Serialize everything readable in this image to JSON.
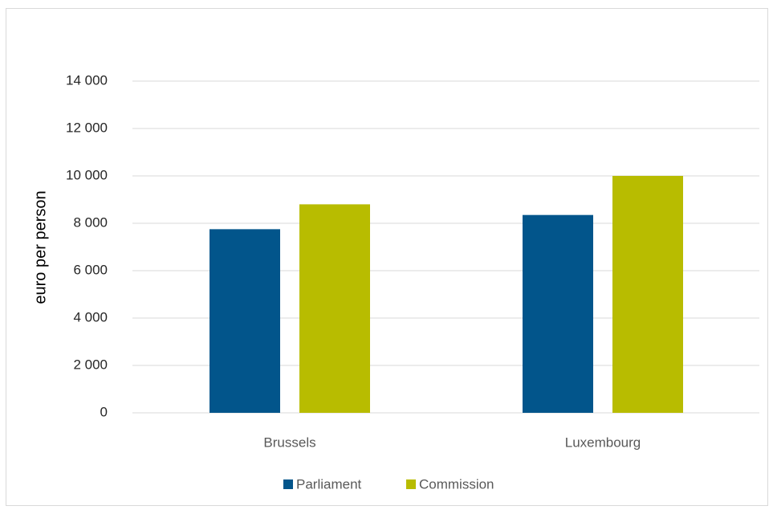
{
  "chart_data": {
    "type": "bar",
    "categories": [
      "Brussels",
      "Luxembourg"
    ],
    "series": [
      {
        "name": "Parliament",
        "values": [
          7750,
          8350
        ],
        "color": "#02558b"
      },
      {
        "name": "Commission",
        "values": [
          8800,
          10000
        ],
        "color": "#b8bc00"
      }
    ],
    "title": "",
    "xlabel": "",
    "ylabel": "euro per person",
    "ylim": [
      0,
      14000
    ],
    "yticks": [
      0,
      2000,
      4000,
      6000,
      8000,
      10000,
      12000,
      14000
    ],
    "ytick_labels": [
      "0",
      "2 000",
      "4 000",
      "6 000",
      "8 000",
      "10 000",
      "12 000",
      "14 000"
    ],
    "grid": true,
    "legend_position": "bottom",
    "gridline_color": "#d9d9d9"
  }
}
